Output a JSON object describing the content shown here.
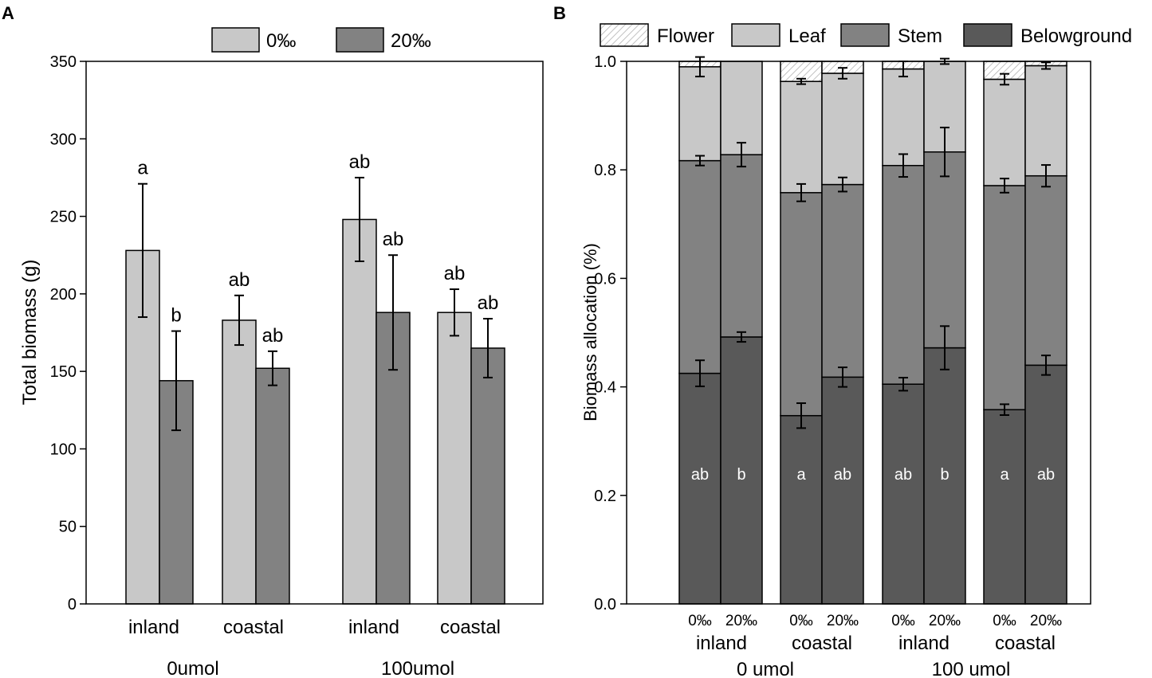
{
  "colors": {
    "light": "#c8c8c8",
    "mid": "#828282",
    "dark": "#595959",
    "hatch": "#b4b4b4",
    "ink": "#000000"
  },
  "chart_data": [
    {
      "panel_label": "A",
      "type": "bar",
      "ylabel": "Total biomass (g)",
      "ylim": [
        0,
        350
      ],
      "yticks": [
        0,
        50,
        100,
        150,
        200,
        250,
        300,
        350
      ],
      "legend": [
        "0‰",
        "20‰"
      ],
      "categories": [
        "inland",
        "coastal",
        "inland",
        "coastal"
      ],
      "groups": [
        "0umol",
        "100umol"
      ],
      "series": [
        {
          "name": "0‰",
          "values": [
            228,
            183,
            248,
            188
          ],
          "errors": [
            43,
            16,
            27,
            15
          ],
          "letters": [
            "a",
            "ab",
            "ab",
            "ab"
          ]
        },
        {
          "name": "20‰",
          "values": [
            144,
            152,
            188,
            165
          ],
          "errors": [
            32,
            11,
            37,
            19
          ],
          "letters": [
            "b",
            "ab",
            "ab",
            "ab"
          ]
        }
      ]
    },
    {
      "panel_label": "B",
      "type": "bar",
      "stacked": true,
      "ylabel": "Biomass allocation (%)",
      "ylim": [
        0,
        1
      ],
      "yticks": [
        "0.0",
        "0.2",
        "0.4",
        "0.6",
        "0.8",
        "1.0"
      ],
      "legend": [
        "Flower",
        "Leaf",
        "Stem",
        "Belowground"
      ],
      "bar_labels": [
        "0‰",
        "20‰",
        "0‰",
        "20‰",
        "0‰",
        "20‰",
        "0‰",
        "20‰"
      ],
      "categories": [
        "inland",
        "coastal",
        "inland",
        "coastal"
      ],
      "groups": [
        "0 umol",
        "100 umol"
      ],
      "series": [
        {
          "name": "Belowground",
          "cumulative": [
            0.425,
            0.492,
            0.347,
            0.418,
            0.405,
            0.472,
            0.358,
            0.44
          ],
          "errors": [
            0.024,
            0.009,
            0.023,
            0.018,
            0.012,
            0.04,
            0.01,
            0.018
          ]
        },
        {
          "name": "Stem",
          "cumulative": [
            0.817,
            0.828,
            0.758,
            0.773,
            0.808,
            0.833,
            0.771,
            0.789
          ],
          "errors": [
            0.009,
            0.022,
            0.016,
            0.013,
            0.021,
            0.045,
            0.013,
            0.02
          ]
        },
        {
          "name": "Leaf",
          "cumulative": [
            0.99,
            1.0,
            0.963,
            0.978,
            0.986,
            1.0,
            0.967,
            0.992
          ],
          "errors": [
            0.018,
            0.0,
            0.005,
            0.01,
            0.014,
            0.005,
            0.01,
            0.006
          ]
        },
        {
          "name": "Flower",
          "cumulative": [
            1.0,
            1.0,
            1.0,
            1.0,
            1.0,
            1.0,
            1.0,
            1.0
          ],
          "errors": [
            0,
            0,
            0,
            0,
            0,
            0,
            0,
            0
          ]
        }
      ],
      "letters": [
        "ab",
        "b",
        "a",
        "ab",
        "ab",
        "b",
        "a",
        "ab"
      ]
    }
  ]
}
